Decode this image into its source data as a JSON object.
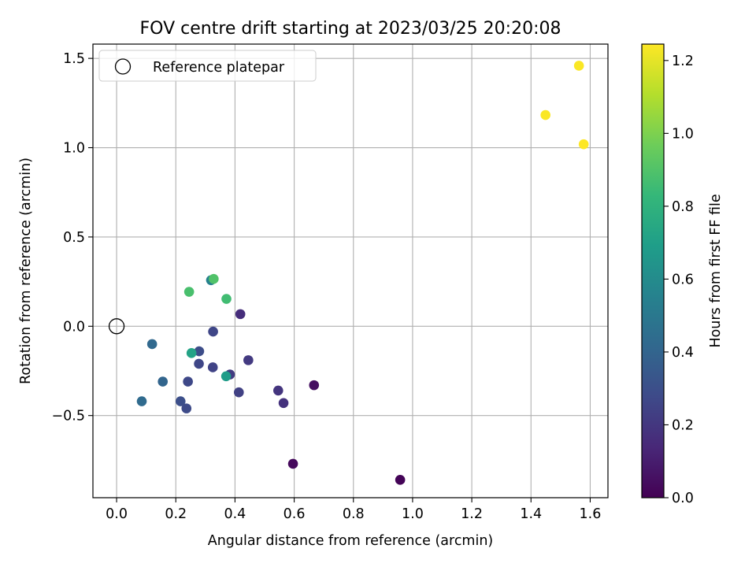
{
  "chart_data": {
    "type": "scatter",
    "title": "FOV centre drift starting at 2023/03/25 20:20:08",
    "xlabel": "Angular distance from reference (arcmin)",
    "ylabel": "Rotation from reference (arcmin)",
    "xlim": [
      -0.08,
      1.66
    ],
    "ylim": [
      -0.96,
      1.58
    ],
    "xticks": [
      0.0,
      0.2,
      0.4,
      0.6,
      0.8,
      1.0,
      1.2,
      1.4,
      1.6
    ],
    "xtick_labels": [
      "0.0",
      "0.2",
      "0.4",
      "0.6",
      "0.8",
      "1.0",
      "1.2",
      "1.4",
      "1.6"
    ],
    "yticks": [
      -0.5,
      0.0,
      0.5,
      1.0,
      1.5
    ],
    "ytick_labels": [
      "−0.5",
      "0.0",
      "0.5",
      "1.0",
      "1.5"
    ],
    "grid": true,
    "legend": {
      "placement": "top-left",
      "entries": [
        "Reference platepar"
      ]
    },
    "reference_point": {
      "x": 0.0,
      "y": 0.0
    },
    "colorbar": {
      "label": "Hours from first FF file",
      "colormap": "viridis",
      "range": [
        0.0,
        1.245
      ],
      "ticks": [
        0.0,
        0.2,
        0.4,
        0.6,
        0.8,
        1.0,
        1.2
      ],
      "tick_labels": [
        "0.0",
        "0.2",
        "0.4",
        "0.6",
        "0.8",
        "1.0",
        "1.2"
      ]
    },
    "points": [
      {
        "x": 0.958,
        "y": -0.86,
        "hours": 0.01
      },
      {
        "x": 0.596,
        "y": -0.77,
        "hours": 0.03
      },
      {
        "x": 0.667,
        "y": -0.33,
        "hours": 0.05
      },
      {
        "x": 0.418,
        "y": 0.068,
        "hours": 0.16
      },
      {
        "x": 0.564,
        "y": -0.43,
        "hours": 0.18
      },
      {
        "x": 0.546,
        "y": -0.36,
        "hours": 0.19
      },
      {
        "x": 0.445,
        "y": -0.19,
        "hours": 0.21
      },
      {
        "x": 0.383,
        "y": -0.27,
        "hours": 0.22
      },
      {
        "x": 0.413,
        "y": -0.37,
        "hours": 0.24
      },
      {
        "x": 0.325,
        "y": -0.23,
        "hours": 0.25
      },
      {
        "x": 0.326,
        "y": -0.03,
        "hours": 0.26
      },
      {
        "x": 0.278,
        "y": -0.21,
        "hours": 0.26
      },
      {
        "x": 0.241,
        "y": -0.31,
        "hours": 0.27
      },
      {
        "x": 0.236,
        "y": -0.46,
        "hours": 0.28
      },
      {
        "x": 0.279,
        "y": -0.14,
        "hours": 0.29
      },
      {
        "x": 0.216,
        "y": -0.42,
        "hours": 0.3
      },
      {
        "x": 0.156,
        "y": -0.31,
        "hours": 0.4
      },
      {
        "x": 0.12,
        "y": -0.1,
        "hours": 0.42
      },
      {
        "x": 0.085,
        "y": -0.42,
        "hours": 0.43
      },
      {
        "x": 0.319,
        "y": 0.258,
        "hours": 0.55
      },
      {
        "x": 0.37,
        "y": -0.28,
        "hours": 0.68
      },
      {
        "x": 0.253,
        "y": -0.15,
        "hours": 0.72
      },
      {
        "x": 0.371,
        "y": 0.153,
        "hours": 0.86
      },
      {
        "x": 0.245,
        "y": 0.193,
        "hours": 0.88
      },
      {
        "x": 0.328,
        "y": 0.265,
        "hours": 0.9
      },
      {
        "x": 1.449,
        "y": 1.183,
        "hours": 1.24
      },
      {
        "x": 1.562,
        "y": 1.459,
        "hours": 1.24
      },
      {
        "x": 1.578,
        "y": 1.019,
        "hours": 1.245
      }
    ]
  }
}
